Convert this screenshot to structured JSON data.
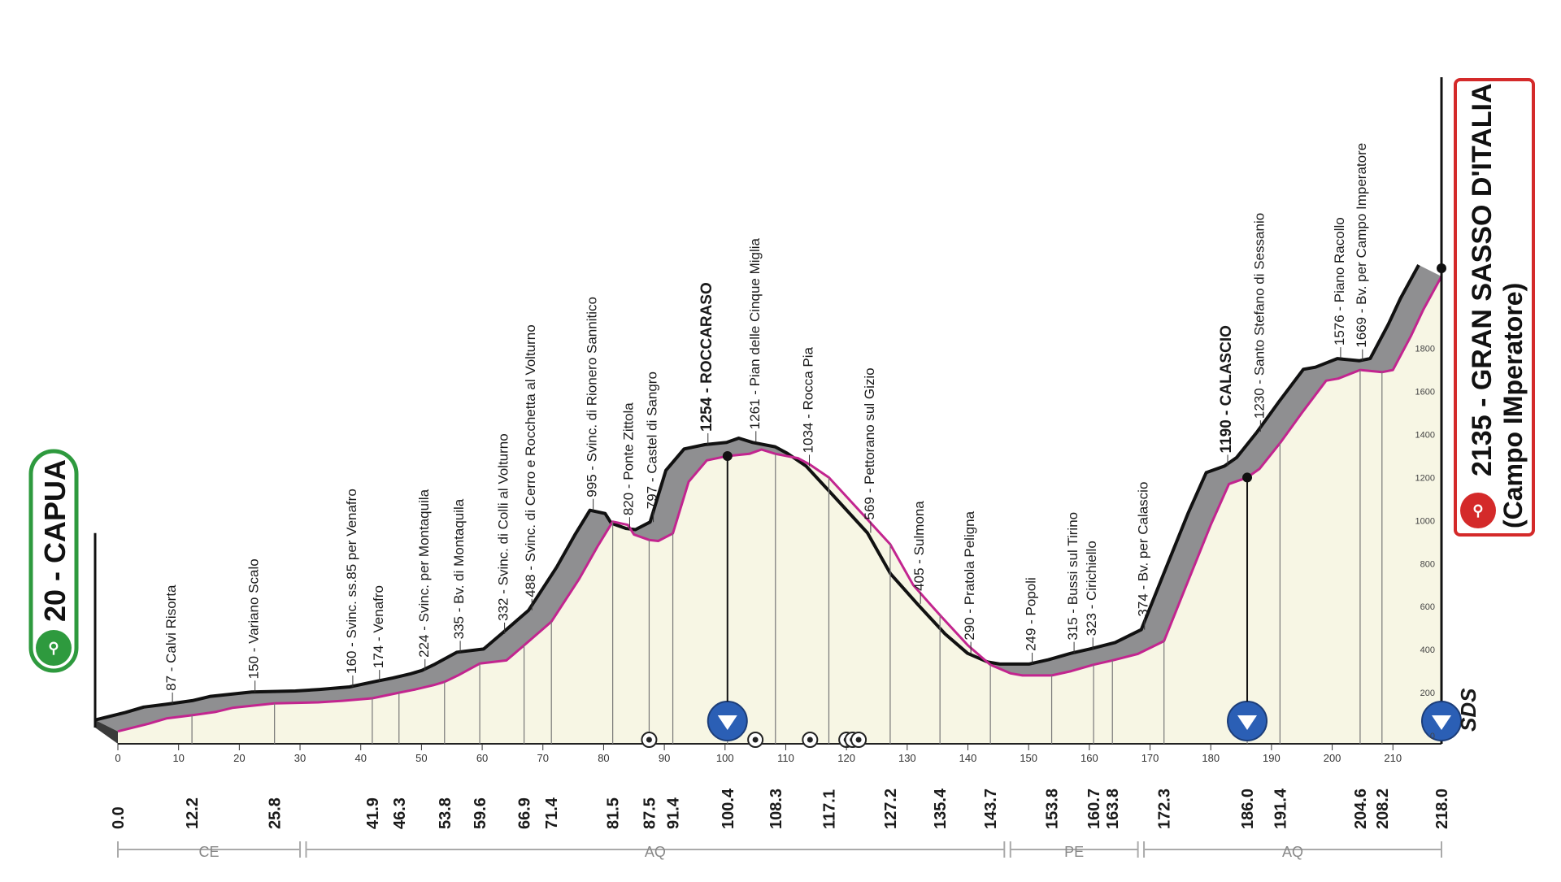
{
  "chart_data": {
    "type": "area",
    "xlabel": "",
    "ylabel": "",
    "xlim": [
      0,
      218
    ],
    "ylim": [
      0,
      2200
    ],
    "start": {
      "name": "20 - CAPUA",
      "km": 0,
      "alt": 20
    },
    "finish": {
      "name": "2135 - GRAN SASSO D'ITALIA",
      "subtitle": "(Campo IMperatore)",
      "km": 218,
      "alt": 2135
    },
    "profile_km": [
      0,
      5,
      8,
      12.2,
      16,
      19,
      25.8,
      33,
      37,
      41.9,
      46.3,
      49,
      52,
      53.8,
      56,
      59.6,
      64,
      66.9,
      71.4,
      76,
      79,
      81.5,
      84,
      85,
      87.5,
      89,
      91.4,
      94,
      97,
      100.4,
      104,
      106,
      108.3,
      112,
      114,
      117.1,
      122,
      127.2,
      131,
      135.4,
      140,
      143.7,
      147,
      149,
      153.8,
      157,
      160.7,
      163.8,
      168,
      172.3,
      176,
      180,
      183,
      186,
      188,
      191.4,
      195,
      199,
      201,
      204.6,
      208.2,
      210,
      213,
      215,
      218
    ],
    "profile_alt": [
      20,
      55,
      80,
      95,
      110,
      130,
      150,
      155,
      162,
      174,
      200,
      215,
      235,
      250,
      280,
      335,
      350,
      420,
      530,
      730,
      880,
      995,
      980,
      935,
      910,
      905,
      940,
      1180,
      1280,
      1300,
      1310,
      1330,
      1310,
      1290,
      1260,
      1200,
      1050,
      890,
      700,
      560,
      420,
      330,
      290,
      280,
      280,
      300,
      330,
      350,
      380,
      440,
      700,
      980,
      1170,
      1200,
      1240,
      1360,
      1500,
      1650,
      1660,
      1700,
      1690,
      1700,
      1860,
      1980,
      2135
    ],
    "altitude_ticks": [
      0,
      200,
      400,
      600,
      800,
      1000,
      1200,
      1400,
      1600,
      1800
    ],
    "km_ticks": [
      0,
      10,
      20,
      30,
      40,
      50,
      60,
      70,
      80,
      90,
      100,
      110,
      120,
      130,
      140,
      150,
      160,
      170,
      180,
      190,
      200,
      210
    ],
    "waypoints": [
      {
        "km": 12.2,
        "label": "87 - Calvi Risorta"
      },
      {
        "km": 25.8,
        "label": "150 - Variano Scalo"
      },
      {
        "km": 41.9,
        "label": "160 - Svinc. ss.85 per Venafro"
      },
      {
        "km": 46.3,
        "label": "174 - Venafro"
      },
      {
        "km": 53.8,
        "label": "224 - Svinc. per Montaquila"
      },
      {
        "km": 59.6,
        "label": "335 - Bv. di Montaquila"
      },
      {
        "km": 66.9,
        "label": "332 - Svinc. di Colli al Volturno"
      },
      {
        "km": 71.4,
        "label": "488 - Svinc. di Cerro e Rocchetta al Volturno"
      },
      {
        "km": 81.5,
        "label": "995 - Svinc. di Rionero Sannitico"
      },
      {
        "km": 87.5,
        "label": "820 - Ponte Zittola"
      },
      {
        "km": 91.4,
        "label": "797 - Castel di Sangro"
      },
      {
        "km": 100.4,
        "label": "1254 - ROCCARASO",
        "bold": true
      },
      {
        "km": 108.3,
        "label": "1261 - Pian delle Cinque Miglia"
      },
      {
        "km": 117.1,
        "label": "1034 - Rocca Pia"
      },
      {
        "km": 127.2,
        "label": "569 - Pettorano sul Gizio"
      },
      {
        "km": 135.4,
        "label": "405 - Sulmona"
      },
      {
        "km": 143.7,
        "label": "290 - Pratola Peligna"
      },
      {
        "km": 153.8,
        "label": "249 - Popoli"
      },
      {
        "km": 160.7,
        "label": "315 - Bussi sul Tirino"
      },
      {
        "km": 163.8,
        "label": "323 - Cirichiello"
      },
      {
        "km": 172.3,
        "label": "374 - Bv. per Calascio"
      },
      {
        "km": 186.0,
        "label": "1190 - CALASCIO",
        "bold": true
      },
      {
        "km": 191.4,
        "label": "1230 - Santo Stefano di Sessanio"
      },
      {
        "km": 204.6,
        "label": "1576 - Piano Racollo"
      },
      {
        "km": 208.2,
        "label": "1669 - Bv. per Campo Imperatore"
      }
    ],
    "km_labels": [
      "0.0",
      "12.2",
      "25.8",
      "41.9",
      "46.3",
      "53.8",
      "59.6",
      "66.9",
      "71.4",
      "81.5",
      "87.5",
      "91.4",
      "100.4",
      "108.3",
      "117.1",
      "127.2",
      "135.4",
      "143.7",
      "153.8",
      "160.7",
      "163.8",
      "172.3",
      "186.0",
      "191.4",
      "204.6",
      "208.2",
      "218.0"
    ],
    "bold_km_labels": [
      "0.0",
      "100.4",
      "186.0",
      "218.0"
    ],
    "gpm_km": [
      100.4,
      186.0,
      218.0
    ],
    "sprint_km": [
      87.5,
      105,
      114,
      120,
      121,
      122
    ],
    "regions": [
      {
        "label": "CE",
        "from": 0,
        "to": 30
      },
      {
        "label": "AQ",
        "from": 31,
        "to": 146
      },
      {
        "label": "PE",
        "from": 147,
        "to": 168
      },
      {
        "label": "AQ",
        "from": 169,
        "to": 218
      }
    ],
    "colors": {
      "profile_fill": "#f7f6e4",
      "shadow": "#8f8f91",
      "gradient_line": "#c2258f",
      "start_green": "#2e9a3e",
      "finish_red": "#d42a2a",
      "gpm_blue": "#2b5fb5"
    },
    "logo": "SDS"
  }
}
